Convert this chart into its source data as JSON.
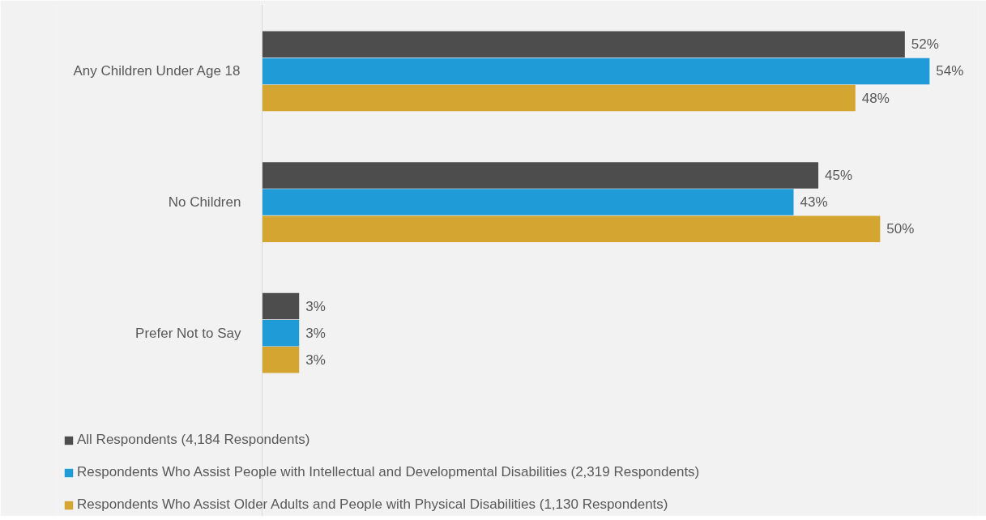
{
  "chart_data": {
    "type": "bar",
    "orientation": "horizontal",
    "categories": [
      "Any Children Under Age 18",
      "No Children",
      "Prefer Not to Say"
    ],
    "series": [
      {
        "name": "All Respondents (4,184 Respondents)",
        "color": "#4d4d4d",
        "values": [
          52,
          45,
          3
        ],
        "value_labels": [
          "52%",
          "45%",
          "3%"
        ]
      },
      {
        "name": "Respondents Who Assist People with Intellectual and Developmental Disabilities (2,319 Respondents)",
        "color": "#1f9bd7",
        "values": [
          54,
          43,
          3
        ],
        "value_labels": [
          "54%",
          "43%",
          "3%"
        ]
      },
      {
        "name": "Respondents Who Assist Older Adults and People with Physical Disabilities (1,130 Respondents)",
        "color": "#d4a531",
        "values": [
          48,
          50,
          3
        ],
        "value_labels": [
          "48%",
          "50%",
          "3%"
        ]
      }
    ],
    "legend": "bottom",
    "tick_labels": "y"
  }
}
